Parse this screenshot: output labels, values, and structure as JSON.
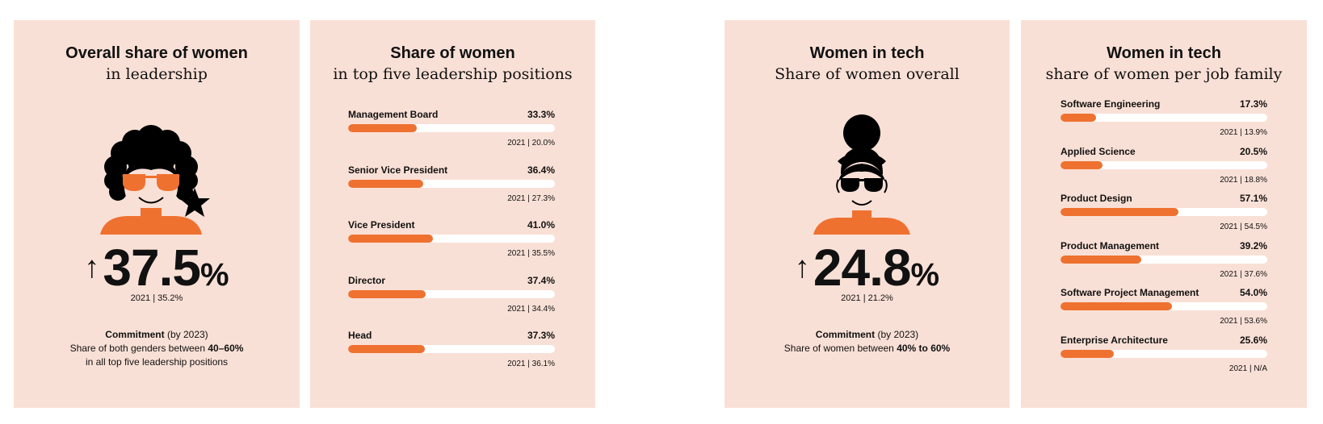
{
  "colors": {
    "panel_bg": "#f9e0d6",
    "accent": "#ef7130",
    "track": "#ffffff",
    "ink": "#000000"
  },
  "panel1": {
    "title": "Overall share of women",
    "subtitle": "in leadership",
    "arrow": "↑",
    "value": "37.5",
    "unit": "%",
    "prev": "2021 | 35.2%",
    "commitment_label": "Commitment",
    "commitment_by": "(by 2023)",
    "commitment_line2a": "Share of both genders between ",
    "commitment_line2b": "40–60%",
    "commitment_line3": "in all top five leadership positions"
  },
  "panel2": {
    "title": "Share of women",
    "subtitle": "in top five leadership positions"
  },
  "panel3": {
    "title": "Women in tech",
    "subtitle": "Share of women overall",
    "arrow": "↑",
    "value": "24.8",
    "unit": "%",
    "prev": "2021 | 21.2%",
    "commitment_label": "Commitment",
    "commitment_by": "(by 2023)",
    "commitment_line2a": "Share of women between ",
    "commitment_line2b": "40% to 60%"
  },
  "panel4": {
    "title": "Women in tech",
    "subtitle": "share of women per job family"
  },
  "chart_data": [
    {
      "type": "bar",
      "title": "Share of women",
      "subtitle": "in top five leadership positions",
      "categories": [
        "Management Board",
        "Senior Vice President",
        "Vice President",
        "Director",
        "Head"
      ],
      "values": [
        33.3,
        36.4,
        41.0,
        37.4,
        37.3
      ],
      "value_labels": [
        "33.3%",
        "36.4%",
        "41.0%",
        "37.4%",
        "37.3%"
      ],
      "prev_labels": [
        "2021 | 20.0%",
        "2021 | 27.3%",
        "2021 | 35.5%",
        "2021 | 34.4%",
        "2021 | 36.1%"
      ],
      "xlim": [
        0,
        100
      ]
    },
    {
      "type": "bar",
      "title": "Women in tech",
      "subtitle": "share of women per job family",
      "categories": [
        "Software Engineering",
        "Applied Science",
        "Product Design",
        "Product Management",
        "Software Project Management",
        "Enterprise Architecture"
      ],
      "values": [
        17.3,
        20.5,
        57.1,
        39.2,
        54.0,
        25.6
      ],
      "value_labels": [
        "17.3%",
        "20.5%",
        "57.1%",
        "39.2%",
        "54.0%",
        "25.6%"
      ],
      "prev_labels": [
        "2021 | 13.9%",
        "2021 | 18.8%",
        "2021 | 54.5%",
        "2021 | 37.6%",
        "2021 | 53.6%",
        "2021 | N/A"
      ],
      "xlim": [
        0,
        100
      ]
    }
  ]
}
